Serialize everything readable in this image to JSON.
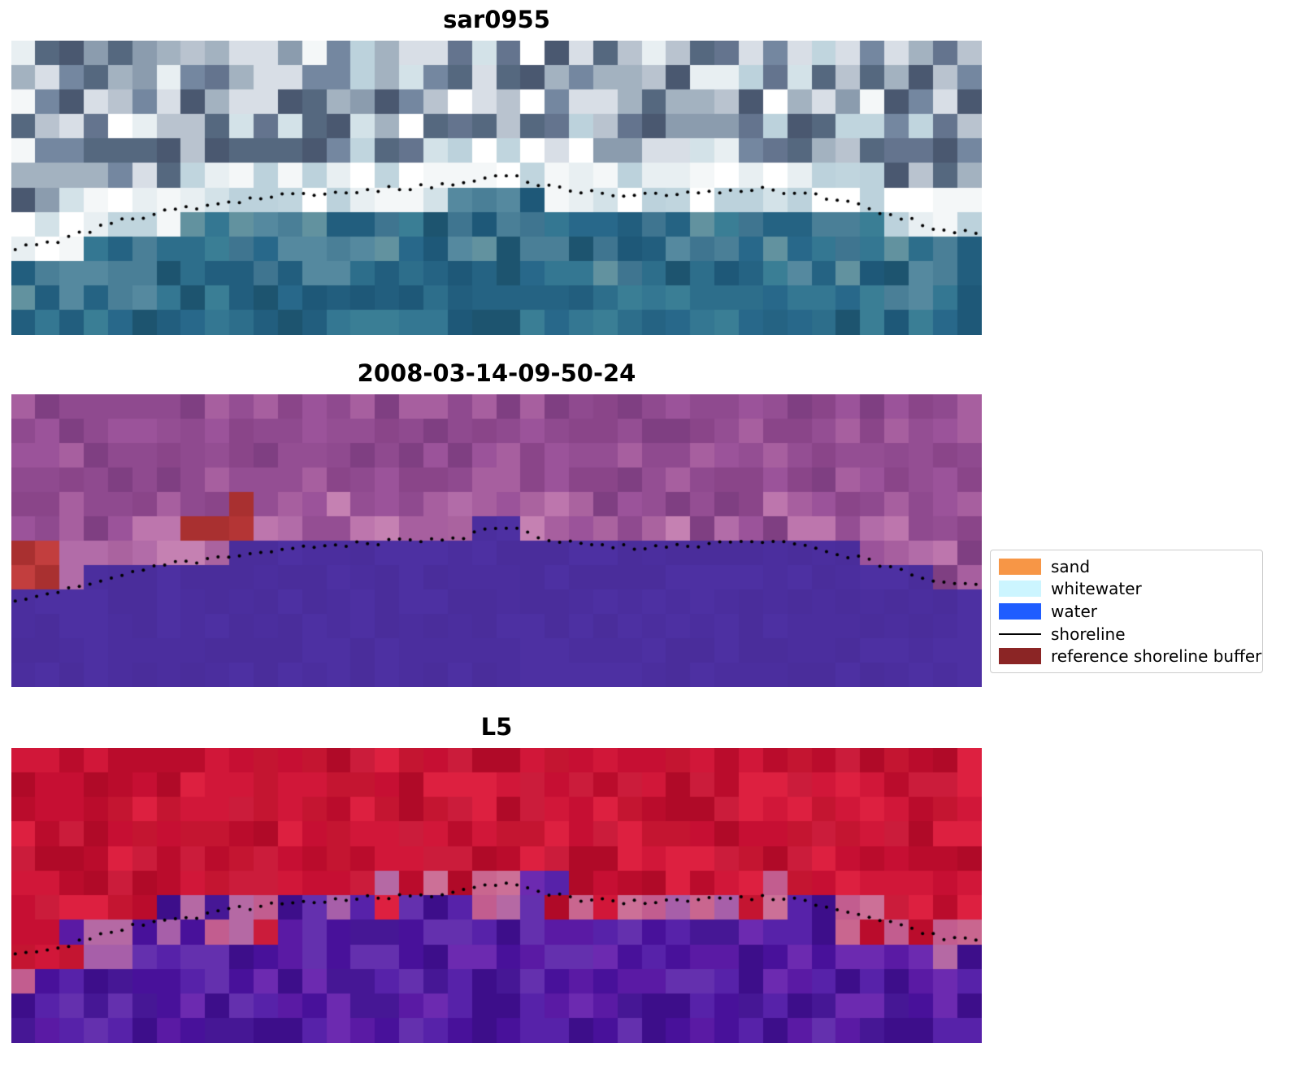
{
  "figure": {
    "background": "#ffffff"
  },
  "legend": {
    "items": [
      {
        "label": "sand",
        "type": "patch",
        "color": "#f79646"
      },
      {
        "label": "whitewater",
        "type": "patch",
        "color": "#ccf5ff"
      },
      {
        "label": "water",
        "type": "patch",
        "color": "#1f5dff"
      },
      {
        "label": "shoreline",
        "type": "line",
        "color": "#000000"
      },
      {
        "label": "reference shoreline buffer",
        "type": "patch",
        "color": "#8b2525"
      }
    ]
  },
  "chart_data": {
    "type": "heatmap",
    "description": "Three stacked pixelated satellite-image panels with a dotted detected shoreline overlay and a classification legend",
    "grid": {
      "cols": 40,
      "rows": 12
    },
    "shoreline": {
      "color": "#000000",
      "dot_step": 0.011,
      "points": [
        [
          0.0,
          0.705
        ],
        [
          0.05,
          0.677
        ],
        [
          0.09,
          0.635
        ],
        [
          0.12,
          0.608
        ],
        [
          0.17,
          0.575
        ],
        [
          0.2,
          0.566
        ],
        [
          0.23,
          0.547
        ],
        [
          0.27,
          0.53
        ],
        [
          0.31,
          0.519
        ],
        [
          0.35,
          0.511
        ],
        [
          0.39,
          0.503
        ],
        [
          0.43,
          0.497
        ],
        [
          0.47,
          0.486
        ],
        [
          0.49,
          0.456
        ],
        [
          0.52,
          0.464
        ],
        [
          0.55,
          0.492
        ],
        [
          0.58,
          0.511
        ],
        [
          0.62,
          0.519
        ],
        [
          0.66,
          0.525
        ],
        [
          0.7,
          0.519
        ],
        [
          0.74,
          0.508
        ],
        [
          0.78,
          0.505
        ],
        [
          0.81,
          0.517
        ],
        [
          0.84,
          0.533
        ],
        [
          0.87,
          0.558
        ],
        [
          0.9,
          0.586
        ],
        [
          0.93,
          0.613
        ],
        [
          0.96,
          0.644
        ],
        [
          1.0,
          0.657
        ]
      ]
    },
    "panels": [
      {
        "title": "sar0955",
        "style": "sar",
        "seed": 7,
        "palette": {
          "clouds": [
            "#64748e",
            "#8b9cae",
            "#b9c3cf",
            "#4a5870",
            "#a3b2c0",
            "#55687f",
            "#7487a0",
            "#d8dee6"
          ],
          "bright": [
            "#e8eff2",
            "#f4f7f8",
            "#d3e2e8",
            "#c0d5de",
            "#ffffff",
            "#bcd2dc"
          ],
          "nearshore": [
            "#55899f",
            "#4a7f97",
            "#62929f",
            "#3f7590"
          ],
          "water": [
            "#2d6e8b",
            "#256383",
            "#347792",
            "#1e5878",
            "#3a7e95",
            "#28688a",
            "#225e7e",
            "#1d546f"
          ]
        }
      },
      {
        "title": "2008-03-14-09-50-24",
        "style": "class",
        "seed": 13,
        "palette": {
          "land": [
            "#8f4a8f",
            "#9b539a",
            "#7f3f82",
            "#a75f9f",
            "#8a4589",
            "#944e93"
          ],
          "land_light": [
            "#b26ca8",
            "#bd76ad",
            "#aa639f",
            "#c581b2"
          ],
          "water": [
            "#4b2e9e",
            "#4a2d9b",
            "#4d30a2"
          ],
          "buffer": [
            "#b43535",
            "#c23e3e",
            "#a93030"
          ]
        },
        "buffer_patches": [
          {
            "x0": 0.0,
            "x1": 0.062,
            "r0": 0.02,
            "r1": 0.2
          },
          {
            "x0": 0.168,
            "x1": 0.258,
            "r0": 0.06,
            "r1": 0.18
          }
        ]
      },
      {
        "title": "L5",
        "style": "l5",
        "seed": 29,
        "palette": {
          "red": [
            "#c60f33",
            "#d11739",
            "#ba0c2c",
            "#dd2040",
            "#c41531",
            "#b00a28",
            "#cb1c3b"
          ],
          "pink": [
            "#c25d8f",
            "#b569a4",
            "#cc7097",
            "#a75fa9",
            "#c9668f"
          ],
          "purple": [
            "#5a1aa4",
            "#48119a",
            "#6c2ab0",
            "#3d0e8a",
            "#5722a9",
            "#461795",
            "#6430ae"
          ]
        }
      }
    ]
  }
}
